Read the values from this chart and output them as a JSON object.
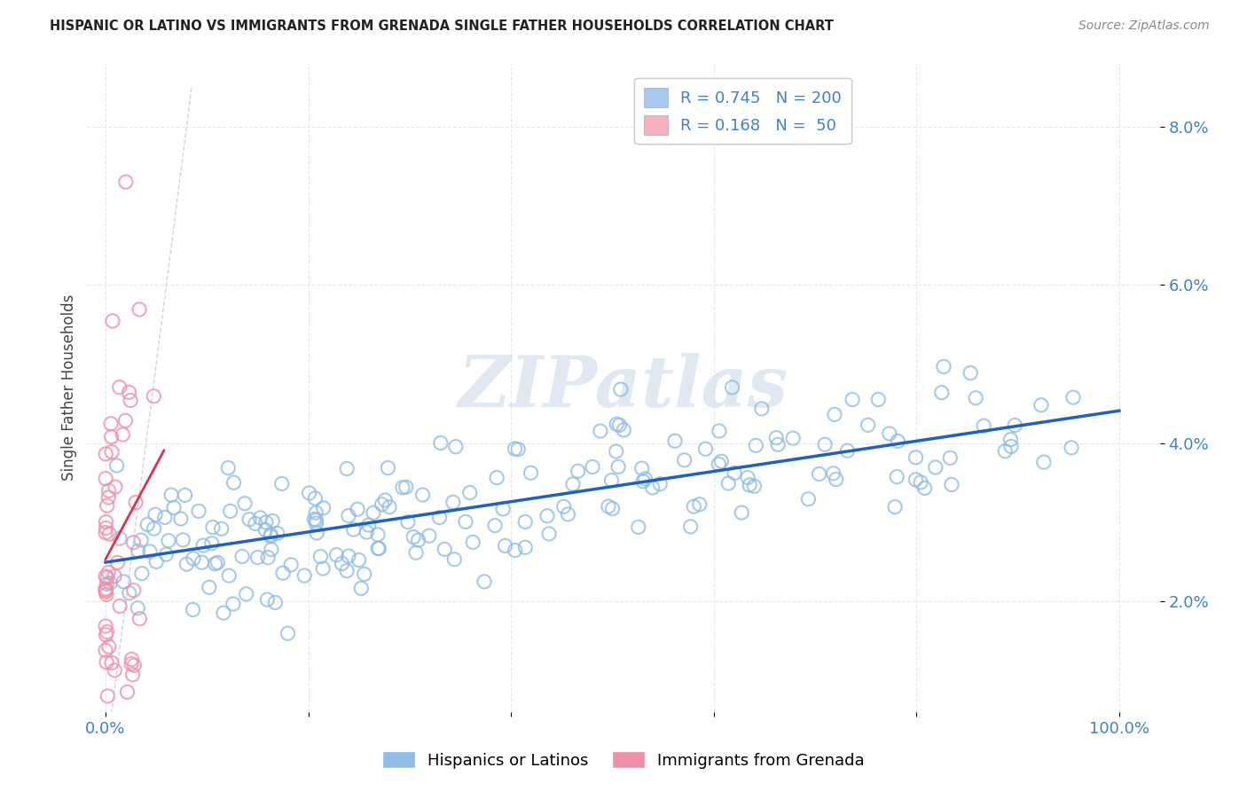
{
  "title": "HISPANIC OR LATINO VS IMMIGRANTS FROM GRENADA SINGLE FATHER HOUSEHOLDS CORRELATION CHART",
  "source": "Source: ZipAtlas.com",
  "ylabel": "Single Father Households",
  "legend_entries": [
    {
      "color": "#a8c8f0",
      "R": "0.745",
      "N": "200"
    },
    {
      "color": "#f8b0c0",
      "R": "0.168",
      "N": " 50"
    }
  ],
  "legend_labels": [
    "Hispanics or Latinos",
    "Immigrants from Grenada"
  ],
  "blue_scatter_color": "#90bce8",
  "pink_scatter_color": "#f090a8",
  "blue_line_color": "#2060c0",
  "pink_line_color": "#e03050",
  "diagonal_color": "#d0c8c8",
  "watermark_color": "#c8d8e8",
  "N_blue": 200,
  "N_pink": 50,
  "background_color": "#ffffff",
  "grid_color": "#e8e8e8",
  "tick_color": "#4080cc",
  "title_color": "#222222",
  "ylabel_color": "#444444",
  "source_color": "#888888"
}
